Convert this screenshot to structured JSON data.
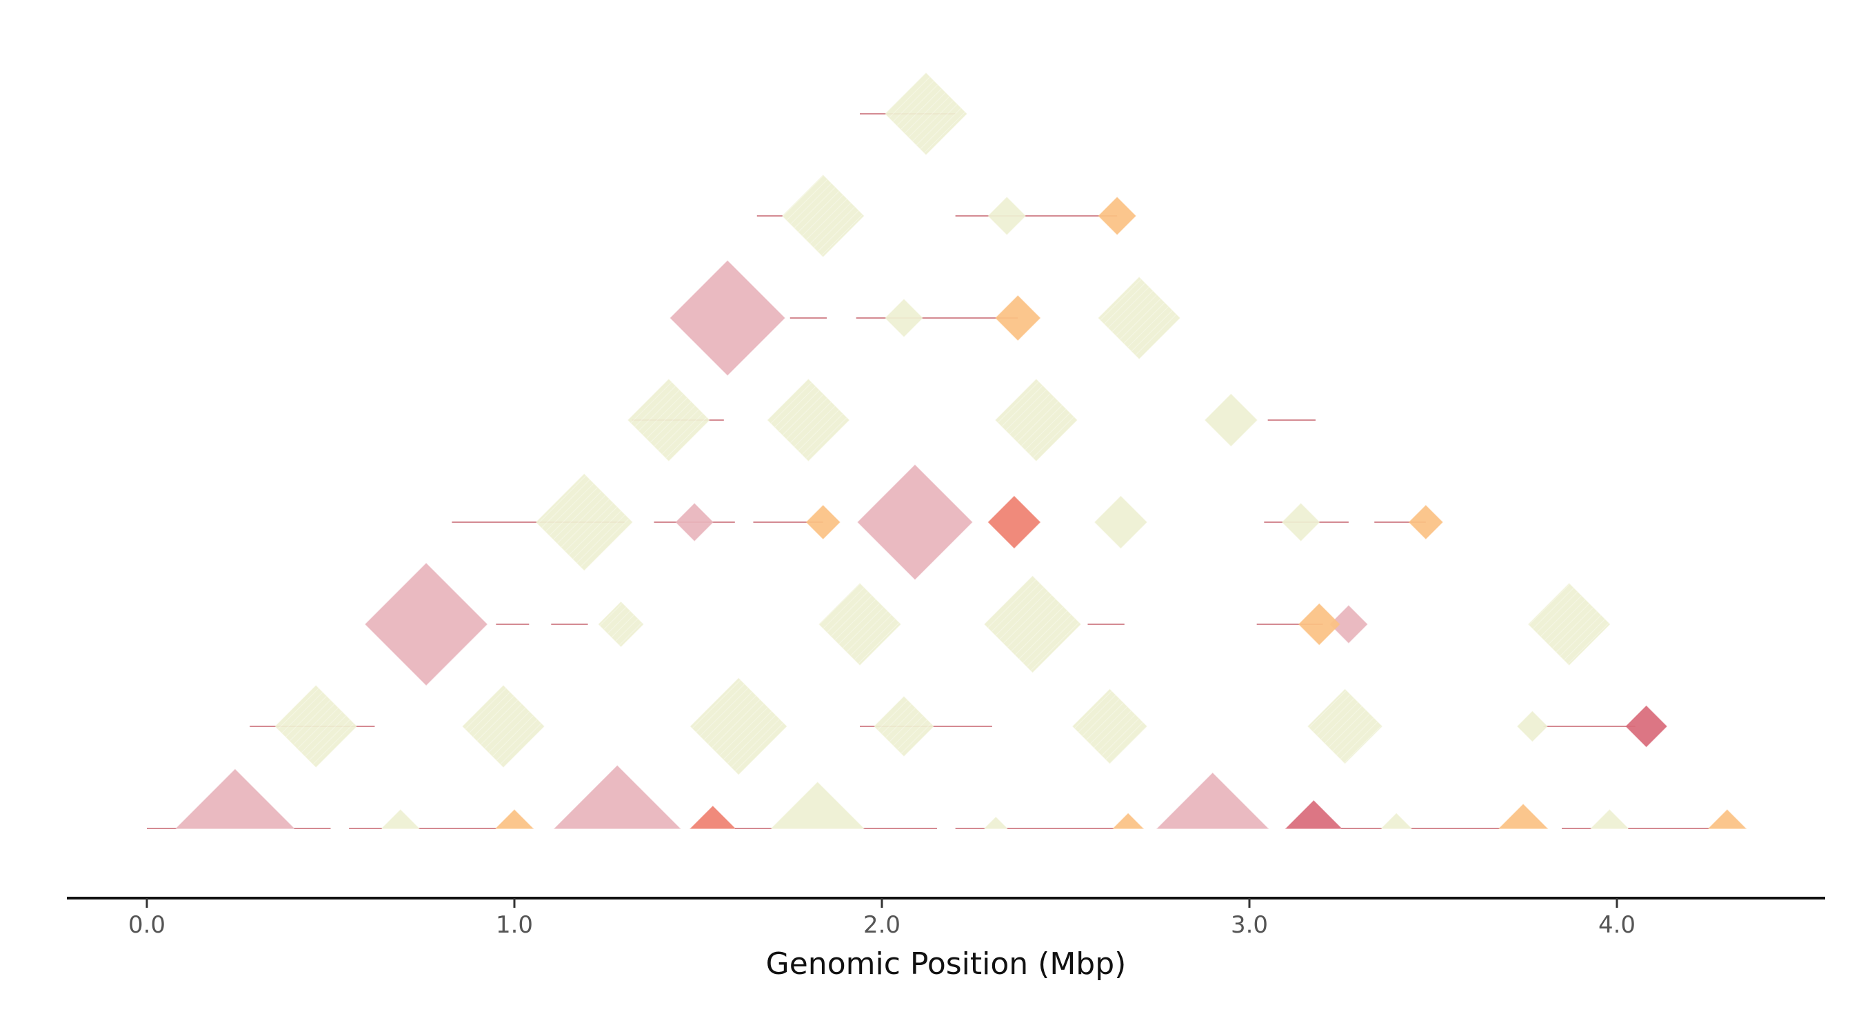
{
  "chart_data": {
    "type": "heatmap",
    "title": "",
    "xlabel": "Genomic Position (Mbp)",
    "ylabel": "",
    "xlim": [
      -0.22,
      4.58
    ],
    "x_ticks": [
      {
        "value": 0.0,
        "label": "0.0"
      },
      {
        "value": 1.0,
        "label": "1.0"
      },
      {
        "value": 2.0,
        "label": "2.0"
      },
      {
        "value": 3.0,
        "label": "3.0"
      },
      {
        "value": 4.0,
        "label": "4.0"
      }
    ],
    "grid": false,
    "legend": "none",
    "levels": 8,
    "colors": {
      "pink": "#e8b4bc",
      "beige": "#eef0d2",
      "salmon": "#ea8a7a",
      "red": "#ef8070",
      "magenta": "#d96a7a",
      "orange": "#fbc183",
      "blue": "#8fb3c9",
      "line": "#d48a92",
      "axis": "#111111"
    },
    "blocks": [
      {
        "kind": "tri",
        "level": 0,
        "x0": 0.08,
        "x1": 0.4,
        "color": "pink"
      },
      {
        "kind": "tri",
        "level": 0,
        "x0": 0.64,
        "x1": 0.74,
        "color": "beige"
      },
      {
        "kind": "tri",
        "level": 0,
        "x0": 0.95,
        "x1": 1.05,
        "color": "orange"
      },
      {
        "kind": "tri",
        "level": 0,
        "x0": 1.11,
        "x1": 1.45,
        "color": "pink"
      },
      {
        "kind": "tri",
        "level": 0,
        "x0": 1.48,
        "x1": 1.6,
        "color": "red"
      },
      {
        "kind": "tri",
        "level": 0,
        "x0": 1.7,
        "x1": 1.95,
        "color": "beige"
      },
      {
        "kind": "tri",
        "level": 0,
        "x0": 2.28,
        "x1": 2.34,
        "color": "beige"
      },
      {
        "kind": "tri",
        "level": 0,
        "x0": 2.63,
        "x1": 2.71,
        "color": "orange"
      },
      {
        "kind": "tri",
        "level": 0,
        "x0": 2.75,
        "x1": 3.05,
        "color": "pink"
      },
      {
        "kind": "tri",
        "level": 0,
        "x0": 3.1,
        "x1": 3.25,
        "color": "magenta"
      },
      {
        "kind": "tri",
        "level": 0,
        "x0": 3.36,
        "x1": 3.44,
        "color": "beige"
      },
      {
        "kind": "tri",
        "level": 0,
        "x0": 3.68,
        "x1": 3.81,
        "color": "orange"
      },
      {
        "kind": "tri",
        "level": 0,
        "x0": 3.93,
        "x1": 4.03,
        "color": "beige"
      },
      {
        "kind": "tri",
        "level": 0,
        "x0": 4.25,
        "x1": 4.35,
        "color": "orange"
      },
      {
        "kind": "dia",
        "level": 1,
        "cx": 0.46,
        "w": 0.22,
        "color": "beige",
        "stripe": true
      },
      {
        "kind": "dia",
        "level": 1,
        "cx": 0.97,
        "w": 0.22,
        "color": "beige",
        "stripe": true
      },
      {
        "kind": "dia",
        "level": 1,
        "cx": 1.61,
        "w": 0.26,
        "color": "beige",
        "stripe": true
      },
      {
        "kind": "dia",
        "level": 1,
        "cx": 2.06,
        "w": 0.16,
        "color": "beige",
        "stripe": true
      },
      {
        "kind": "dia",
        "level": 1,
        "cx": 2.62,
        "w": 0.2,
        "color": "beige",
        "stripe": true
      },
      {
        "kind": "dia",
        "level": 1,
        "cx": 3.26,
        "w": 0.2,
        "color": "beige",
        "stripe": true
      },
      {
        "kind": "dia",
        "level": 1,
        "cx": 4.08,
        "w": 0.11,
        "color": "magenta"
      },
      {
        "kind": "dia",
        "level": 1,
        "cx": 3.77,
        "w": 0.08,
        "color": "beige"
      },
      {
        "kind": "dia",
        "level": 2,
        "cx": 0.76,
        "w": 0.33,
        "color": "pink"
      },
      {
        "kind": "dia",
        "level": 2,
        "cx": 1.29,
        "w": 0.12,
        "color": "beige",
        "stripe": true
      },
      {
        "kind": "dia",
        "level": 2,
        "cx": 1.94,
        "w": 0.22,
        "color": "beige",
        "stripe": true
      },
      {
        "kind": "dia",
        "level": 2,
        "cx": 2.41,
        "w": 0.26,
        "color": "beige",
        "stripe": true
      },
      {
        "kind": "dia",
        "level": 2,
        "cx": 3.27,
        "w": 0.1,
        "color": "pink"
      },
      {
        "kind": "dia",
        "level": 2,
        "cx": 3.19,
        "w": 0.11,
        "color": "orange"
      },
      {
        "kind": "dia",
        "level": 2,
        "cx": 3.87,
        "w": 0.22,
        "color": "beige",
        "stripe": true
      },
      {
        "kind": "dia",
        "level": 3,
        "cx": 1.19,
        "w": 0.26,
        "color": "beige",
        "stripe": true
      },
      {
        "kind": "dia",
        "level": 3,
        "cx": 1.49,
        "w": 0.1,
        "color": "pink"
      },
      {
        "kind": "dia",
        "level": 3,
        "cx": 1.84,
        "w": 0.09,
        "color": "orange"
      },
      {
        "kind": "dia",
        "level": 3,
        "cx": 2.09,
        "w": 0.31,
        "color": "pink"
      },
      {
        "kind": "dia",
        "level": 3,
        "cx": 2.36,
        "w": 0.14,
        "color": "red"
      },
      {
        "kind": "dia",
        "level": 3,
        "cx": 2.65,
        "w": 0.14,
        "color": "beige"
      },
      {
        "kind": "dia",
        "level": 3,
        "cx": 3.14,
        "w": 0.1,
        "color": "beige"
      },
      {
        "kind": "dia",
        "level": 3,
        "cx": 3.48,
        "w": 0.09,
        "color": "orange"
      },
      {
        "kind": "dia",
        "level": 4,
        "cx": 1.42,
        "w": 0.22,
        "color": "beige",
        "stripe": true
      },
      {
        "kind": "dia",
        "level": 4,
        "cx": 1.8,
        "w": 0.22,
        "color": "beige",
        "stripe": true
      },
      {
        "kind": "dia",
        "level": 4,
        "cx": 2.42,
        "w": 0.22,
        "color": "beige",
        "stripe": true
      },
      {
        "kind": "dia",
        "level": 4,
        "cx": 2.95,
        "w": 0.14,
        "color": "beige"
      },
      {
        "kind": "dia",
        "level": 5,
        "cx": 1.58,
        "w": 0.31,
        "color": "pink"
      },
      {
        "kind": "dia",
        "level": 5,
        "cx": 2.06,
        "w": 0.1,
        "color": "beige"
      },
      {
        "kind": "dia",
        "level": 5,
        "cx": 2.37,
        "w": 0.12,
        "color": "orange"
      },
      {
        "kind": "dia",
        "level": 5,
        "cx": 2.7,
        "w": 0.22,
        "color": "beige",
        "stripe": true
      },
      {
        "kind": "dia",
        "level": 6,
        "cx": 1.84,
        "w": 0.22,
        "color": "beige",
        "stripe": true
      },
      {
        "kind": "dia",
        "level": 6,
        "cx": 2.34,
        "w": 0.1,
        "color": "beige"
      },
      {
        "kind": "dia",
        "level": 6,
        "cx": 2.64,
        "w": 0.1,
        "color": "orange"
      },
      {
        "kind": "dia",
        "level": 7,
        "cx": 2.12,
        "w": 0.22,
        "color": "beige",
        "stripe": true
      }
    ],
    "links": [
      {
        "level": 0,
        "x0": 0.0,
        "x1": 0.08
      },
      {
        "level": 0,
        "x0": 0.4,
        "x1": 0.5
      },
      {
        "level": 0,
        "x0": 0.55,
        "x1": 0.64
      },
      {
        "level": 0,
        "x0": 0.74,
        "x1": 0.95
      },
      {
        "level": 0,
        "x0": 1.6,
        "x1": 1.7
      },
      {
        "level": 0,
        "x0": 1.95,
        "x1": 2.15
      },
      {
        "level": 0,
        "x0": 2.2,
        "x1": 2.28
      },
      {
        "level": 0,
        "x0": 2.34,
        "x1": 2.63
      },
      {
        "level": 0,
        "x0": 3.25,
        "x1": 3.36
      },
      {
        "level": 0,
        "x0": 3.44,
        "x1": 3.68
      },
      {
        "level": 0,
        "x0": 3.85,
        "x1": 3.93
      },
      {
        "level": 0,
        "x0": 4.03,
        "x1": 4.25
      },
      {
        "level": 1,
        "x0": 0.28,
        "x1": 0.62
      },
      {
        "level": 1,
        "x0": 1.94,
        "x1": 2.3
      },
      {
        "level": 1,
        "x0": 3.8,
        "x1": 4.05
      },
      {
        "level": 2,
        "x0": 0.95,
        "x1": 1.04
      },
      {
        "level": 2,
        "x0": 1.1,
        "x1": 1.2
      },
      {
        "level": 2,
        "x0": 2.56,
        "x1": 2.66
      },
      {
        "level": 2,
        "x0": 3.02,
        "x1": 3.2
      },
      {
        "level": 3,
        "x0": 0.83,
        "x1": 1.3
      },
      {
        "level": 3,
        "x0": 1.38,
        "x1": 1.6
      },
      {
        "level": 3,
        "x0": 1.65,
        "x1": 1.84
      },
      {
        "level": 3,
        "x0": 3.04,
        "x1": 3.27
      },
      {
        "level": 3,
        "x0": 3.34,
        "x1": 3.48
      },
      {
        "level": 4,
        "x0": 1.32,
        "x1": 1.57
      },
      {
        "level": 4,
        "x0": 3.05,
        "x1": 3.18
      },
      {
        "level": 5,
        "x0": 1.75,
        "x1": 1.85
      },
      {
        "level": 5,
        "x0": 1.93,
        "x1": 2.37
      },
      {
        "level": 6,
        "x0": 1.66,
        "x1": 1.73
      },
      {
        "level": 6,
        "x0": 2.2,
        "x1": 2.64
      },
      {
        "level": 7,
        "x0": 1.94,
        "x1": 2.2
      }
    ]
  }
}
